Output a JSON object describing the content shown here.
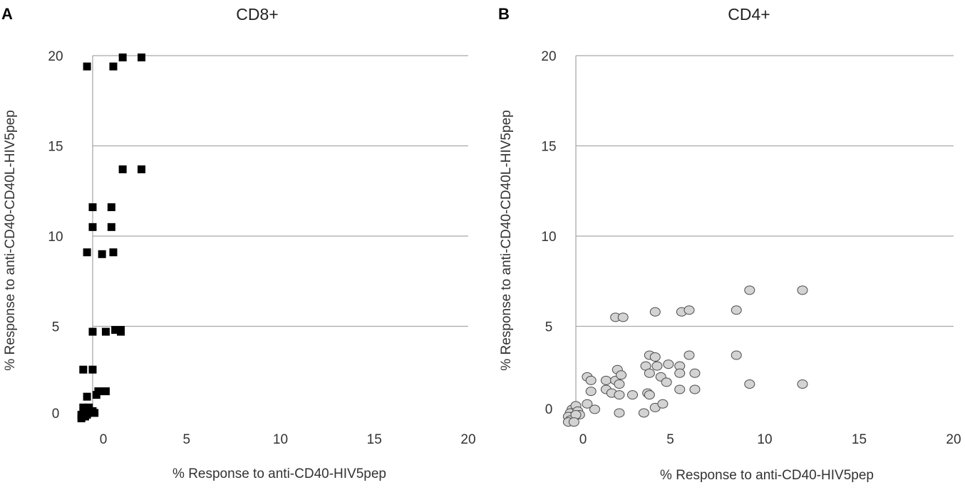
{
  "chart_data": [
    {
      "panel": "A",
      "type": "scatter",
      "title": "CD8+",
      "xlabel": "% Response to anti-CD40-HIV5pep",
      "ylabel": "% Response to anti-CD40-CD40L-HIV5pep",
      "xlim": [
        0,
        20
      ],
      "ylim": [
        0,
        20
      ],
      "xticks": [
        "0",
        "5",
        "10",
        "15",
        "20"
      ],
      "yticks": [
        "0",
        "5",
        "10",
        "15",
        "20"
      ],
      "grid": "horizontal",
      "marker": "square",
      "marker_color": "#000000",
      "points": [
        [
          -0.3,
          19.4
        ],
        [
          1.1,
          19.4
        ],
        [
          1.6,
          19.9
        ],
        [
          2.6,
          19.9
        ],
        [
          1.6,
          13.7
        ],
        [
          2.6,
          13.7
        ],
        [
          0.0,
          11.6
        ],
        [
          1.0,
          11.6
        ],
        [
          0.0,
          10.5
        ],
        [
          1.0,
          10.5
        ],
        [
          -0.3,
          9.1
        ],
        [
          1.1,
          9.1
        ],
        [
          0.5,
          9.0
        ],
        [
          0.0,
          4.7
        ],
        [
          0.7,
          4.7
        ],
        [
          1.2,
          4.8
        ],
        [
          1.5,
          4.8
        ],
        [
          1.5,
          4.7
        ],
        [
          -0.5,
          2.6
        ],
        [
          0.0,
          2.6
        ],
        [
          -0.3,
          1.1
        ],
        [
          0.3,
          1.4
        ],
        [
          0.2,
          1.2
        ],
        [
          0.7,
          1.4
        ],
        [
          -0.5,
          0.5
        ],
        [
          -0.2,
          0.5
        ],
        [
          -0.4,
          0.3
        ],
        [
          0.0,
          0.3
        ],
        [
          0.1,
          0.2
        ],
        [
          -0.6,
          0.1
        ],
        [
          -0.3,
          0.1
        ],
        [
          -0.6,
          -0.1
        ],
        [
          -0.4,
          0.0
        ]
      ]
    },
    {
      "panel": "B",
      "type": "scatter",
      "title": "CD4+",
      "xlabel": "% Response to anti-CD40-HIV5pep",
      "ylabel": "% Response to anti-CD40-CD40L-HIV5pep",
      "xlim": [
        0,
        20
      ],
      "ylim": [
        0,
        20
      ],
      "xticks": [
        "0",
        "5",
        "10",
        "15",
        "20"
      ],
      "yticks": [
        "0",
        "5",
        "10",
        "15",
        "20"
      ],
      "grid": "horizontal",
      "marker": "circle",
      "marker_color": "#d3d3d3",
      "points": [
        [
          9.2,
          7.0
        ],
        [
          12.0,
          7.0
        ],
        [
          4.2,
          5.8
        ],
        [
          5.6,
          5.8
        ],
        [
          6.0,
          5.9
        ],
        [
          8.5,
          5.9
        ],
        [
          2.1,
          5.5
        ],
        [
          2.5,
          5.5
        ],
        [
          3.9,
          3.4
        ],
        [
          4.2,
          3.3
        ],
        [
          6.0,
          3.4
        ],
        [
          8.5,
          3.4
        ],
        [
          2.2,
          2.6
        ],
        [
          3.7,
          2.8
        ],
        [
          4.3,
          2.8
        ],
        [
          4.9,
          2.9
        ],
        [
          5.5,
          2.8
        ],
        [
          0.6,
          2.2
        ],
        [
          0.8,
          2.0
        ],
        [
          1.6,
          2.0
        ],
        [
          2.1,
          2.0
        ],
        [
          4.5,
          2.2
        ],
        [
          5.5,
          2.4
        ],
        [
          6.3,
          2.4
        ],
        [
          2.4,
          2.3
        ],
        [
          3.9,
          2.4
        ],
        [
          4.8,
          1.9
        ],
        [
          2.3,
          1.8
        ],
        [
          1.6,
          1.5
        ],
        [
          1.9,
          1.3
        ],
        [
          0.8,
          1.4
        ],
        [
          2.3,
          1.2
        ],
        [
          3.0,
          1.2
        ],
        [
          3.8,
          1.3
        ],
        [
          3.9,
          1.2
        ],
        [
          5.5,
          1.5
        ],
        [
          6.3,
          1.5
        ],
        [
          9.2,
          1.8
        ],
        [
          12.0,
          1.8
        ],
        [
          0.6,
          0.7
        ],
        [
          1.0,
          0.4
        ],
        [
          4.2,
          0.5
        ],
        [
          4.6,
          0.7
        ],
        [
          3.6,
          0.2
        ],
        [
          2.3,
          0.2
        ],
        [
          -0.2,
          0.4
        ],
        [
          0.0,
          0.6
        ],
        [
          -0.3,
          0.2
        ],
        [
          0.1,
          0.3
        ],
        [
          -0.2,
          0.0
        ],
        [
          0.2,
          0.1
        ],
        [
          -0.4,
          0.0
        ],
        [
          -0.3,
          -0.2
        ],
        [
          0.0,
          0.1
        ],
        [
          -0.4,
          -0.3
        ],
        [
          -0.1,
          -0.3
        ]
      ]
    }
  ]
}
